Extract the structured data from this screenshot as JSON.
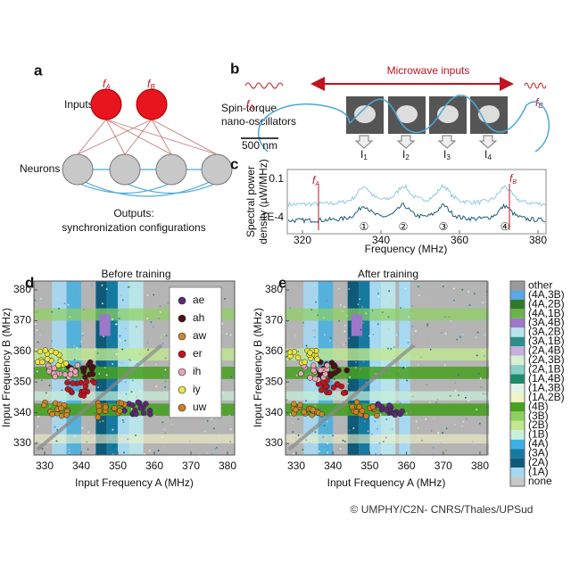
{
  "panel_a": {
    "letter": "a",
    "inputs": "Inputs",
    "f": "f",
    "sub_a": "A",
    "sub_b": "B",
    "neurons": "Neurons",
    "outputs": [
      "Outputs:",
      "synchronization configurations"
    ]
  },
  "panel_b": {
    "letter": "b",
    "microwave": "Microwave inputs",
    "sto": [
      "Spin-torque",
      "nano-oscillators"
    ],
    "scale": "500 nm",
    "f": "f",
    "sub_a": "A",
    "sub_b": "B",
    "current": "I",
    "current_subs": [
      "1",
      "2",
      "3",
      "4"
    ]
  },
  "panel_c": {
    "letter": "c",
    "ylabel": [
      "Spectral power",
      "density (µW/MHz)"
    ],
    "yticks": [
      "0.1",
      "1E-4"
    ],
    "xticks": [
      320,
      340,
      360,
      380
    ],
    "xlabel": "Frequency (MHz)",
    "f": "f",
    "sub_a": "A",
    "sub_b": "B",
    "peaks": [
      "①",
      "②",
      "③",
      "④"
    ]
  },
  "panel_d": {
    "letter": "d",
    "title": "Before training",
    "xlabel": "Input Frequency A (MHz)",
    "ylabel": "Input Frequency B (MHz)",
    "xticks": [
      330,
      340,
      350,
      360,
      370,
      380
    ],
    "yticks": [
      380,
      370,
      360,
      350,
      340,
      330
    ],
    "legend": [
      {
        "name": "ae",
        "color": "#5b2a78"
      },
      {
        "name": "ah",
        "color": "#4a1212"
      },
      {
        "name": "aw",
        "color": "#c98a26"
      },
      {
        "name": "er",
        "color": "#c0141e"
      },
      {
        "name": "ih",
        "color": "#e6a6b6"
      },
      {
        "name": "iy",
        "color": "#e8e440"
      },
      {
        "name": "uw",
        "color": "#d27e1e"
      }
    ]
  },
  "panel_e": {
    "letter": "e",
    "title": "After training",
    "xlabel": "Input Frequency A (MHz)",
    "ylabel": "Input Frequency B (MHz)",
    "xticks": [
      330,
      340,
      350,
      360,
      370,
      380
    ],
    "yticks": [
      380,
      370,
      360,
      350,
      340,
      330
    ],
    "colorbar": [
      {
        "name": "other",
        "color": "#9a9a9a"
      },
      {
        "name": "(4A,3B)",
        "color": "#5aa6e6"
      },
      {
        "name": "(4A,2B)",
        "color": "#2f7a2a"
      },
      {
        "name": "(4A,1B)",
        "color": "#6cb24c"
      },
      {
        "name": "(3A,4B)",
        "color": "#9c78c8"
      },
      {
        "name": "(3A,2B)",
        "color": "#b8e4ea"
      },
      {
        "name": "(3A,1B)",
        "color": "#2e8c8a"
      },
      {
        "name": "(2A,4B)",
        "color": "#c4b0dc"
      },
      {
        "name": "(2A,3B)",
        "color": "#d8f0d0"
      },
      {
        "name": "(2A,1B)",
        "color": "#8ad0c8"
      },
      {
        "name": "(1A,4B)",
        "color": "#1e8a6a"
      },
      {
        "name": "(1A,3B)",
        "color": "#e0f4e8"
      },
      {
        "name": "(1A,2B)",
        "color": "#f2f2c8"
      },
      {
        "name": "(4B)",
        "color": "#48a020"
      },
      {
        "name": "(3B)",
        "color": "#8ed060"
      },
      {
        "name": "(2B)",
        "color": "#c0e890"
      },
      {
        "name": "(1B)",
        "color": "#c8f0d8"
      },
      {
        "name": "(4A)",
        "color": "#3cb0e6"
      },
      {
        "name": "(3A)",
        "color": "#167aa0"
      },
      {
        "name": "(2A)",
        "color": "#0e5a78"
      },
      {
        "name": "(1A)",
        "color": "#a6d8f2"
      },
      {
        "name": "none",
        "color": "#c8c8c8"
      }
    ]
  },
  "credit": "© UMPHY/C2N- CNRS/Thales/UPSud"
}
